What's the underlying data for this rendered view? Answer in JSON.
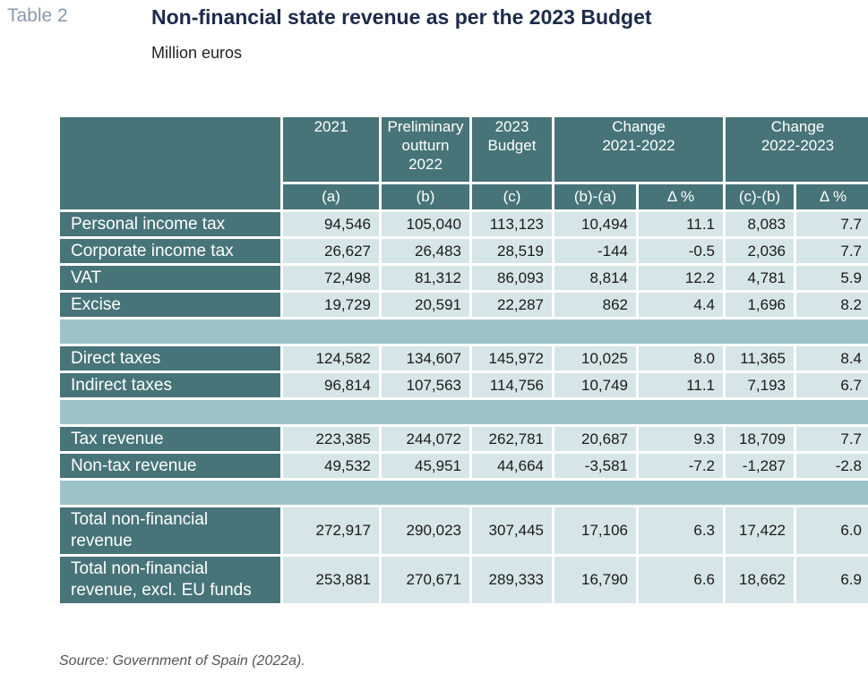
{
  "header": {
    "table_label": "Table 2",
    "title": "Non-financial state revenue as per the 2023 Budget",
    "subtitle": "Million euros"
  },
  "table": {
    "columns": {
      "c2021": "2021",
      "prelim_line1": "Preliminary",
      "prelim_line2": "outturn",
      "prelim_line3": "2022",
      "budget_line1": "2023",
      "budget_line2": "Budget",
      "change1_line1": "Change",
      "change1_line2": "2021-2022",
      "change2_line1": "Change",
      "change2_line2": "2022-2023"
    },
    "subheaders": [
      "(a)",
      "(b)",
      "(c)",
      "(b)-(a)",
      "Δ %",
      "(c)-(b)",
      "Δ %"
    ],
    "rows": [
      {
        "label": "Personal income tax",
        "values": [
          "94,546",
          "105,040",
          "113,123",
          "10,494",
          "11.1",
          "8,083",
          "7.7"
        ]
      },
      {
        "label": "Corporate income tax",
        "values": [
          "26,627",
          "26,483",
          "28,519",
          "-144",
          "-0.5",
          "2,036",
          "7.7"
        ]
      },
      {
        "label": "VAT",
        "values": [
          "72,498",
          "81,312",
          "86,093",
          "8,814",
          "12.2",
          "4,781",
          "5.9"
        ]
      },
      {
        "label": "Excise",
        "values": [
          "19,729",
          "20,591",
          "22,287",
          "862",
          "4.4",
          "1,696",
          "8.2"
        ]
      },
      {
        "label": "Direct taxes",
        "values": [
          "124,582",
          "134,607",
          "145,972",
          "10,025",
          "8.0",
          "11,365",
          "8.4"
        ]
      },
      {
        "label": "Indirect taxes",
        "values": [
          "96,814",
          "107,563",
          "114,756",
          "10,749",
          "11.1",
          "7,193",
          "6.7"
        ]
      },
      {
        "label": "Tax revenue",
        "values": [
          "223,385",
          "244,072",
          "262,781",
          "20,687",
          "9.3",
          "18,709",
          "7.7"
        ]
      },
      {
        "label": "Non-tax revenue",
        "values": [
          "49,532",
          "45,951",
          "44,664",
          "-3,581",
          "-7.2",
          "-1,287",
          "-2.8"
        ]
      },
      {
        "label_line1": "Total non-financial",
        "label_line2": "revenue",
        "values": [
          "272,917",
          "290,023",
          "307,445",
          "17,106",
          "6.3",
          "17,422",
          "6.0"
        ]
      },
      {
        "label_line1": "Total non-financial",
        "label_line2": "revenue, excl. EU funds",
        "values": [
          "253,881",
          "270,671",
          "289,333",
          "16,790",
          "6.6",
          "18,662",
          "6.9"
        ]
      }
    ]
  },
  "footer": {
    "source": "Source: Government of Spain (2022a)."
  }
}
